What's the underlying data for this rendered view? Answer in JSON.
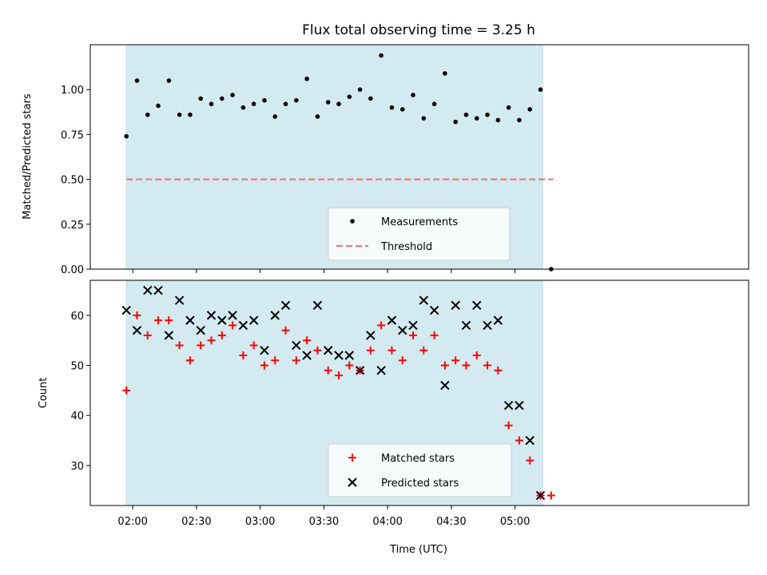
{
  "chart_data": {
    "title": "Flux total observing time = 3.25 h",
    "xlabel": "Time (UTC)",
    "xticks": [
      "02:00",
      "02:30",
      "03:00",
      "03:30",
      "04:00",
      "04:30",
      "05:00"
    ],
    "xtick_minutes": [
      120,
      150,
      180,
      210,
      240,
      270,
      300
    ],
    "xlim_minutes": [
      100,
      410
    ],
    "observing_window_minutes": [
      117,
      313
    ],
    "window_color": "#d3eaf0",
    "panels": [
      {
        "id": "ratio",
        "type": "scatter",
        "ylabel": "Matched/Predicted stars",
        "ylim": [
          0,
          1.25
        ],
        "yticks": [
          "0.00",
          "0.25",
          "0.50",
          "0.75",
          "1.00"
        ],
        "ytick_values": [
          0,
          0.25,
          0.5,
          0.75,
          1.0
        ],
        "threshold": {
          "name": "Threshold",
          "value": 0.5,
          "x_range": [
            117,
            318
          ],
          "color": "#f07070"
        },
        "series": [
          {
            "name": "Measurements",
            "marker": "dot",
            "color": "#000000",
            "x": [
              117,
              122,
              127,
              132,
              137,
              142,
              147,
              152,
              157,
              162,
              167,
              172,
              177,
              182,
              187,
              192,
              197,
              202,
              207,
              212,
              217,
              222,
              227,
              232,
              237,
              242,
              247,
              252,
              257,
              262,
              267,
              272,
              277,
              282,
              287,
              292,
              297,
              302,
              307,
              312,
              317
            ],
            "y": [
              0.74,
              1.05,
              0.86,
              0.91,
              1.05,
              0.86,
              0.86,
              0.95,
              0.92,
              0.95,
              0.97,
              0.9,
              0.92,
              0.94,
              0.85,
              0.92,
              0.94,
              1.06,
              0.85,
              0.93,
              0.92,
              0.96,
              1.0,
              0.95,
              1.19,
              0.9,
              0.89,
              0.97,
              0.84,
              0.92,
              1.09,
              0.82,
              0.86,
              0.84,
              0.86,
              0.83,
              0.9,
              0.83,
              0.89,
              1.0,
              0.0
            ]
          }
        ],
        "legend": [
          "Measurements",
          "Threshold"
        ]
      },
      {
        "id": "count",
        "type": "scatter",
        "ylabel": "Count",
        "ylim": [
          22,
          67
        ],
        "yticks": [
          "30",
          "40",
          "50",
          "60"
        ],
        "ytick_values": [
          30,
          40,
          50,
          60
        ],
        "series": [
          {
            "name": "Matched stars",
            "marker": "plus",
            "color": "#ff0000",
            "x": [
              117,
              122,
              127,
              132,
              137,
              142,
              147,
              152,
              157,
              162,
              167,
              172,
              177,
              182,
              187,
              192,
              197,
              202,
              207,
              212,
              217,
              222,
              227,
              232,
              237,
              242,
              247,
              252,
              257,
              262,
              267,
              272,
              277,
              282,
              287,
              292,
              297,
              302,
              307,
              312,
              317
            ],
            "y": [
              45,
              60,
              56,
              59,
              59,
              54,
              51,
              54,
              55,
              56,
              58,
              52,
              54,
              50,
              51,
              57,
              51,
              55,
              53,
              49,
              48,
              50,
              49,
              53,
              58,
              53,
              51,
              56,
              53,
              56,
              50,
              51,
              50,
              52,
              50,
              49,
              38,
              35,
              31,
              24,
              24
            ]
          },
          {
            "name": "Predicted stars",
            "marker": "x",
            "color": "#000000",
            "x": [
              117,
              122,
              127,
              132,
              137,
              142,
              147,
              152,
              157,
              162,
              167,
              172,
              177,
              182,
              187,
              192,
              197,
              202,
              207,
              212,
              217,
              222,
              227,
              232,
              237,
              242,
              247,
              252,
              257,
              262,
              267,
              272,
              277,
              282,
              287,
              292,
              297,
              302,
              307,
              312
            ],
            "y": [
              61,
              57,
              65,
              65,
              56,
              63,
              59,
              57,
              60,
              59,
              60,
              58,
              59,
              53,
              60,
              62,
              54,
              52,
              62,
              53,
              52,
              52,
              49,
              56,
              49,
              59,
              57,
              58,
              63,
              61,
              46,
              62,
              58,
              62,
              58,
              59,
              42,
              42,
              35,
              24
            ]
          }
        ],
        "legend": [
          "Matched stars",
          "Predicted stars"
        ]
      }
    ]
  }
}
